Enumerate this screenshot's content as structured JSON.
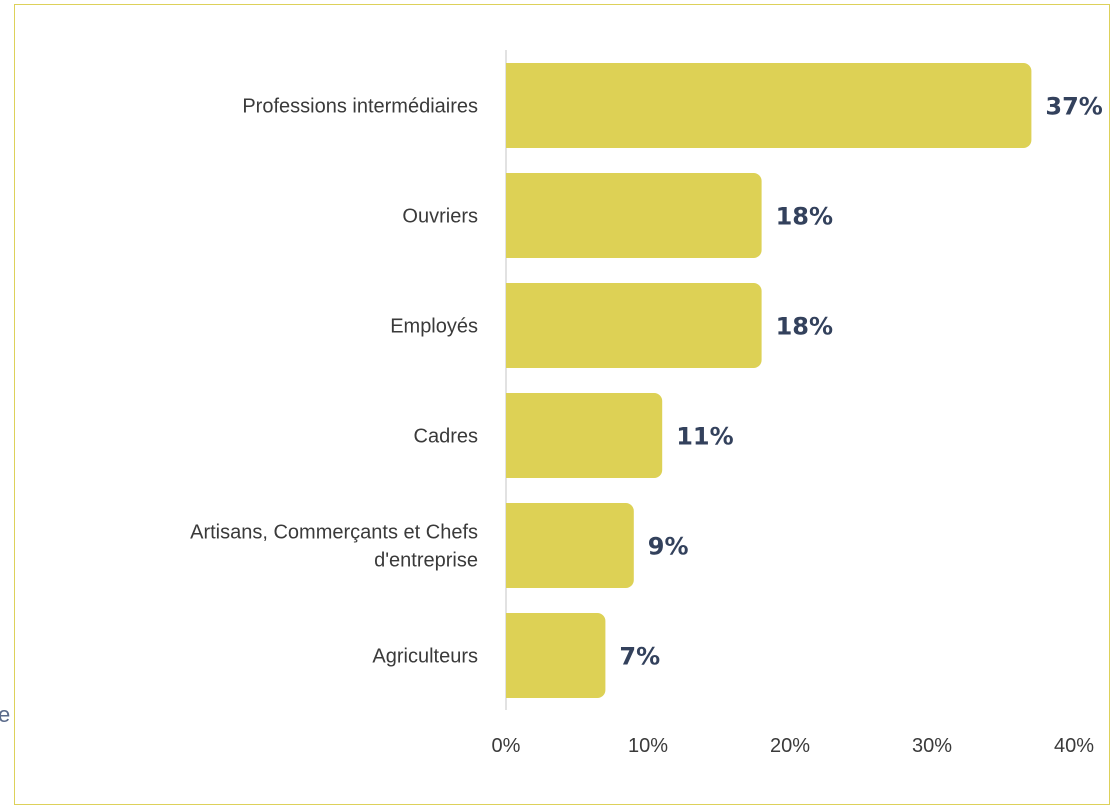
{
  "colors": {
    "bar": "#ddd155",
    "value_label": "#33415c",
    "frame": "#ddd15a",
    "axis_line": "#d9d9d9",
    "text": "#3a3a3a"
  },
  "edge_fragment": "e",
  "chart_data": {
    "type": "bar",
    "orientation": "horizontal",
    "categories": [
      "Professions intermédiaires",
      "Ouvriers",
      "Employés",
      "Cadres",
      "Artisans, Commerçants et Chefs d'entreprise",
      "Agriculteurs"
    ],
    "category_lines": [
      [
        "Professions intermédiaires"
      ],
      [
        "Ouvriers"
      ],
      [
        "Employés"
      ],
      [
        "Cadres"
      ],
      [
        "Artisans, Commerçants et Chefs",
        "d'entreprise"
      ],
      [
        "Agriculteurs"
      ]
    ],
    "values": [
      37,
      18,
      18,
      11,
      9,
      7
    ],
    "value_labels": [
      "37%",
      "18%",
      "18%",
      "11%",
      "9%",
      "7%"
    ],
    "xlim": [
      0,
      40
    ],
    "x_ticks": [
      0,
      10,
      20,
      30,
      40
    ],
    "x_tick_labels": [
      "0%",
      "10%",
      "20%",
      "30%",
      "40%"
    ],
    "grid": false,
    "legend": "none",
    "title": "",
    "xlabel": "",
    "ylabel": ""
  }
}
